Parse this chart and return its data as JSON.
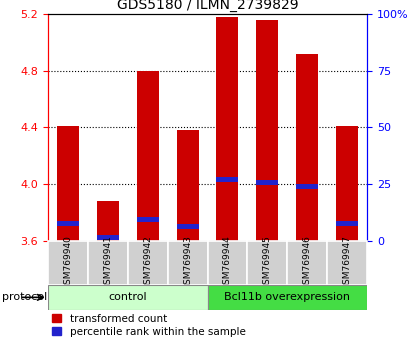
{
  "title": "GDS5180 / ILMN_2739829",
  "samples": [
    "GSM769940",
    "GSM769941",
    "GSM769942",
    "GSM769943",
    "GSM769944",
    "GSM769945",
    "GSM769946",
    "GSM769947"
  ],
  "red_values": [
    4.41,
    3.88,
    4.8,
    4.38,
    5.18,
    5.16,
    4.92,
    4.41
  ],
  "blue_values": [
    3.72,
    3.62,
    3.75,
    3.7,
    4.03,
    4.01,
    3.98,
    3.72
  ],
  "ylim_left": [
    3.6,
    5.2
  ],
  "ylim_right": [
    0,
    100
  ],
  "left_ticks": [
    3.6,
    4.0,
    4.4,
    4.8,
    5.2
  ],
  "right_ticks": [
    0,
    25,
    50,
    75,
    100
  ],
  "right_tick_labels": [
    "0",
    "25",
    "50",
    "75",
    "100%"
  ],
  "grid_lines": [
    4.0,
    4.4,
    4.8
  ],
  "bar_color": "#cc0000",
  "blue_color": "#2222cc",
  "bar_width": 0.55,
  "ctrl_color": "#ccffcc",
  "bcl_color": "#44dd44",
  "sample_box_color": "#d0d0d0",
  "protocol_label": "protocol",
  "legend_red": "transformed count",
  "legend_blue": "percentile rank within the sample",
  "title_fontsize": 10,
  "tick_fontsize": 8,
  "sample_fontsize": 6.5,
  "group_fontsize": 8,
  "legend_fontsize": 7.5
}
